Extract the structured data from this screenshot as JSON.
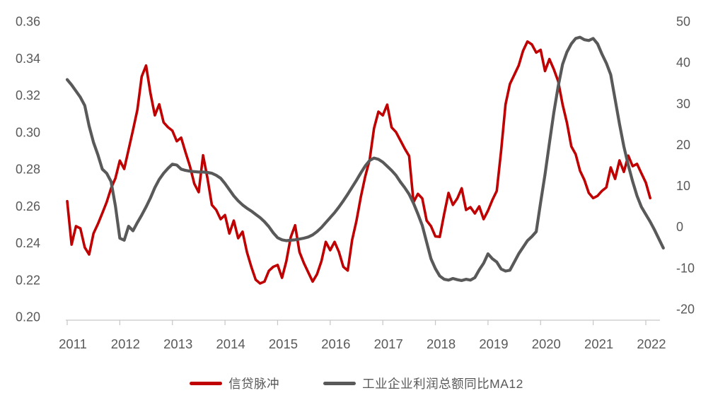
{
  "chart_data": {
    "type": "line",
    "title": "",
    "xlabel": "",
    "ylabel_left": "",
    "ylabel_right": "",
    "grid": false,
    "background": "#ffffff",
    "legend_position": "bottom-center",
    "x_tick_labels": [
      "2011",
      "2012",
      "2013",
      "2014",
      "2015",
      "2016",
      "2017",
      "2018",
      "2019",
      "2020",
      "2021",
      "2022"
    ],
    "left_axis": {
      "min": 0.2,
      "max": 0.36,
      "tick_labels": [
        "0.36",
        "0.34",
        "0.32",
        "0.30",
        "0.28",
        "0.26",
        "0.24",
        "0.22",
        "0.20"
      ]
    },
    "right_axis": {
      "min": -20,
      "max": 50,
      "tick_labels": [
        "50",
        "40",
        "30",
        "20",
        "10",
        "0",
        "-10",
        "-20"
      ]
    },
    "axis_text_color": "#595959",
    "axis_line_color": "#c6c6c6",
    "x_start": "2011-01",
    "x_frequency": "monthly",
    "series": [
      {
        "id": "credit-pulse",
        "name": "信贷脉冲",
        "axis": "left",
        "color": "#c00000",
        "width": 3.6,
        "end": "2022-02",
        "values": [
          0.2625,
          0.239,
          0.249,
          0.2478,
          0.2375,
          0.2337,
          0.2451,
          0.2502,
          0.256,
          0.262,
          0.2695,
          0.275,
          0.2845,
          0.28,
          0.2905,
          0.301,
          0.312,
          0.33,
          0.336,
          0.321,
          0.309,
          0.315,
          0.3052,
          0.3026,
          0.3007,
          0.295,
          0.2969,
          0.289,
          0.2815,
          0.272,
          0.2674,
          0.2874,
          0.275,
          0.2605,
          0.2578,
          0.2528,
          0.255,
          0.245,
          0.252,
          0.2425,
          0.246,
          0.235,
          0.227,
          0.22,
          0.218,
          0.219,
          0.2248,
          0.227,
          0.228,
          0.221,
          0.23,
          0.243,
          0.2495,
          0.235,
          0.229,
          0.224,
          0.219,
          0.223,
          0.23,
          0.2405,
          0.236,
          0.2405,
          0.235,
          0.227,
          0.225,
          0.2415,
          0.252,
          0.265,
          0.276,
          0.285,
          0.302,
          0.311,
          0.309,
          0.3148,
          0.3025,
          0.3,
          0.2955,
          0.291,
          0.287,
          0.262,
          0.2665,
          0.264,
          0.252,
          0.249,
          0.2435,
          0.2432,
          0.2555,
          0.267,
          0.2605,
          0.264,
          0.2695,
          0.2578,
          0.2593,
          0.2559,
          0.2597,
          0.2528,
          0.2574,
          0.2632,
          0.2681,
          0.29,
          0.315,
          0.326,
          0.331,
          0.336,
          0.344,
          0.349,
          0.3474,
          0.343,
          0.3445,
          0.333,
          0.3395,
          0.334,
          0.3275,
          0.315,
          0.305,
          0.2922,
          0.288,
          0.279,
          0.274,
          0.267,
          0.2642,
          0.2654,
          0.2681,
          0.27,
          0.2808,
          0.2746,
          0.2846,
          0.2784,
          0.2872,
          0.2815,
          0.2827,
          0.2776,
          0.2726,
          0.2642
        ]
      },
      {
        "id": "industrial-profit-ma12",
        "name": "工业企业利润总额同比MA12",
        "axis": "right",
        "color": "#595959",
        "width": 4.2,
        "end": "2022-05",
        "values": [
          35.8,
          34.5,
          33.0,
          31.5,
          29.5,
          24.5,
          20.5,
          17.5,
          14.0,
          13.0,
          11.0,
          5.0,
          -2.8,
          -3.3,
          0.1,
          -1.0,
          1.0,
          2.8,
          4.8,
          7.0,
          9.5,
          11.5,
          13.0,
          14.2,
          15.2,
          15.0,
          14.0,
          13.7,
          13.5,
          13.4,
          13.3,
          13.3,
          13.2,
          13.0,
          12.5,
          11.8,
          10.5,
          9.0,
          7.5,
          6.3,
          5.3,
          4.5,
          3.8,
          3.0,
          2.2,
          1.2,
          0.0,
          -1.5,
          -2.7,
          -3.2,
          -3.4,
          -3.3,
          -3.2,
          -3.0,
          -2.8,
          -2.5,
          -2.0,
          -1.2,
          -0.2,
          1.0,
          2.2,
          3.4,
          4.8,
          6.3,
          7.9,
          9.6,
          11.3,
          13.1,
          14.8,
          16.1,
          16.7,
          16.4,
          15.7,
          14.7,
          13.7,
          12.5,
          10.9,
          9.5,
          7.9,
          5.7,
          3.1,
          0.3,
          -3.8,
          -7.8,
          -10.2,
          -12.0,
          -12.8,
          -13.0,
          -12.6,
          -12.9,
          -13.1,
          -12.8,
          -13.0,
          -12.4,
          -10.5,
          -8.9,
          -6.6,
          -7.8,
          -8.6,
          -10.3,
          -10.8,
          -10.6,
          -8.6,
          -6.6,
          -5.0,
          -3.4,
          -2.4,
          -1.2,
          5.9,
          12.7,
          20.3,
          27.7,
          34.1,
          39.5,
          42.5,
          44.5,
          45.8,
          46.1,
          45.5,
          45.3,
          45.8,
          44.5,
          42.0,
          39.8,
          37.0,
          31.0,
          25.0,
          19.5,
          15.0,
          11.0,
          7.5,
          4.8,
          3.0,
          1.2,
          -0.8,
          -3.0,
          -5.2
        ]
      }
    ]
  }
}
